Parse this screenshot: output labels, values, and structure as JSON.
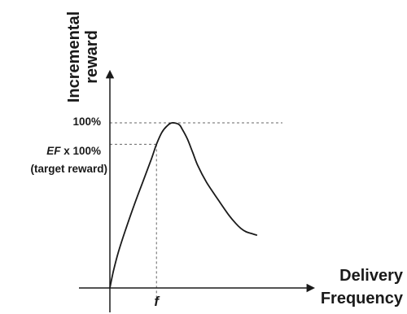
{
  "chart_data": {
    "type": "line",
    "title": "",
    "xlabel": "Delivery Frequency",
    "ylabel": "Incremental reward",
    "ylabel_lines": [
      "Incremental",
      "reward"
    ],
    "xlabel_lines": [
      "Delivery",
      "Frequency"
    ],
    "xlim": [
      0,
      1
    ],
    "ylim": [
      0,
      1.15
    ],
    "grid": false,
    "legend": "none",
    "axis_color": "#1a1a1a",
    "line_color": "#1a1a1a",
    "guide_color": "#666666",
    "series": [
      {
        "values_x": [
          0.0,
          0.02,
          0.05,
          0.09,
          0.14,
          0.19,
          0.24,
          0.27,
          0.3,
          0.33,
          0.36,
          0.4,
          0.42,
          0.45,
          0.48,
          0.51,
          0.56,
          0.63,
          0.69,
          0.73,
          0.76,
          0.79,
          0.82,
          0.85
        ],
        "values_y": [
          0.0,
          0.1,
          0.22,
          0.35,
          0.5,
          0.64,
          0.78,
          0.87,
          0.94,
          0.98,
          1.0,
          0.99,
          0.96,
          0.9,
          0.82,
          0.74,
          0.64,
          0.53,
          0.44,
          0.39,
          0.36,
          0.34,
          0.33,
          0.32
        ]
      }
    ],
    "reference_lines": [
      {
        "name": "max-reward",
        "y": 1.0,
        "label": "100%",
        "x_end": 1.0
      },
      {
        "name": "target-reward",
        "y": 0.87,
        "x_at": 0.27,
        "label_parts": [
          "EF",
          " x 100%"
        ],
        "label_line2": "(target reward)"
      }
    ],
    "x_marker": {
      "x": 0.27,
      "label": "f"
    }
  }
}
